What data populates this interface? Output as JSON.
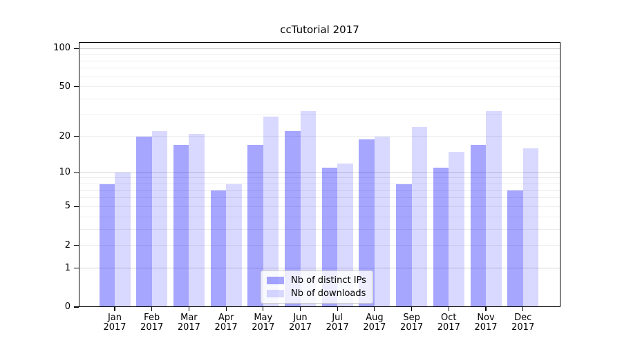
{
  "title": "ccTutorial 2017",
  "colors": {
    "ips_bar": "rgba(0,0,255,0.35)",
    "downloads_bar": "rgba(0,0,255,0.15)",
    "major_grid": "#d2d2d2",
    "minor_grid": "#ededed",
    "axis": "#000000",
    "legend_border": "#cccccc",
    "legend_background": "rgba(255,255,255,0.8)"
  },
  "legend": {
    "items": [
      {
        "label": "Nb of distinct IPs",
        "color_key": "ips_bar"
      },
      {
        "label": "Nb of downloads",
        "color_key": "downloads_bar"
      }
    ]
  },
  "y_axis": {
    "tick_labels": [
      "100",
      "50",
      "20",
      "10",
      "5",
      "2",
      "1",
      "0"
    ],
    "tick_values": [
      100,
      50,
      20,
      10,
      5,
      2,
      1,
      0
    ],
    "major_grid_values": [
      1,
      10,
      100
    ],
    "minor_grid_values": [
      2,
      3,
      4,
      5,
      6,
      7,
      8,
      9,
      20,
      30,
      40,
      50,
      60,
      70,
      80,
      90
    ]
  },
  "x_axis": {
    "tick_labels": [
      "Jan\n2017",
      "Feb\n2017",
      "Mar\n2017",
      "Apr\n2017",
      "May\n2017",
      "Jun\n2017",
      "Jul\n2017",
      "Aug\n2017",
      "Sep\n2017",
      "Oct\n2017",
      "Nov\n2017",
      "Dec\n2017"
    ]
  },
  "chart_data": {
    "type": "bar",
    "title": "ccTutorial 2017",
    "categories": [
      "Jan 2017",
      "Feb 2017",
      "Mar 2017",
      "Apr 2017",
      "May 2017",
      "Jun 2017",
      "Jul 2017",
      "Aug 2017",
      "Sep 2017",
      "Oct 2017",
      "Nov 2017",
      "Dec 2017"
    ],
    "series": [
      {
        "name": "Nb of distinct IPs",
        "values": [
          8,
          20,
          17,
          7,
          17,
          22,
          11,
          19,
          8,
          11,
          17,
          7
        ]
      },
      {
        "name": "Nb of downloads",
        "values": [
          10,
          22,
          21,
          8,
          29,
          32,
          12,
          20,
          24,
          15,
          32,
          16
        ]
      }
    ],
    "xlabel": "",
    "ylabel": "",
    "yscale": "log1p",
    "ylim": [
      0,
      112
    ],
    "yticks": [
      0,
      1,
      2,
      5,
      10,
      20,
      50,
      100
    ],
    "grid": "horizontal major+minor",
    "legend_position": "lower center-right inside plot"
  }
}
